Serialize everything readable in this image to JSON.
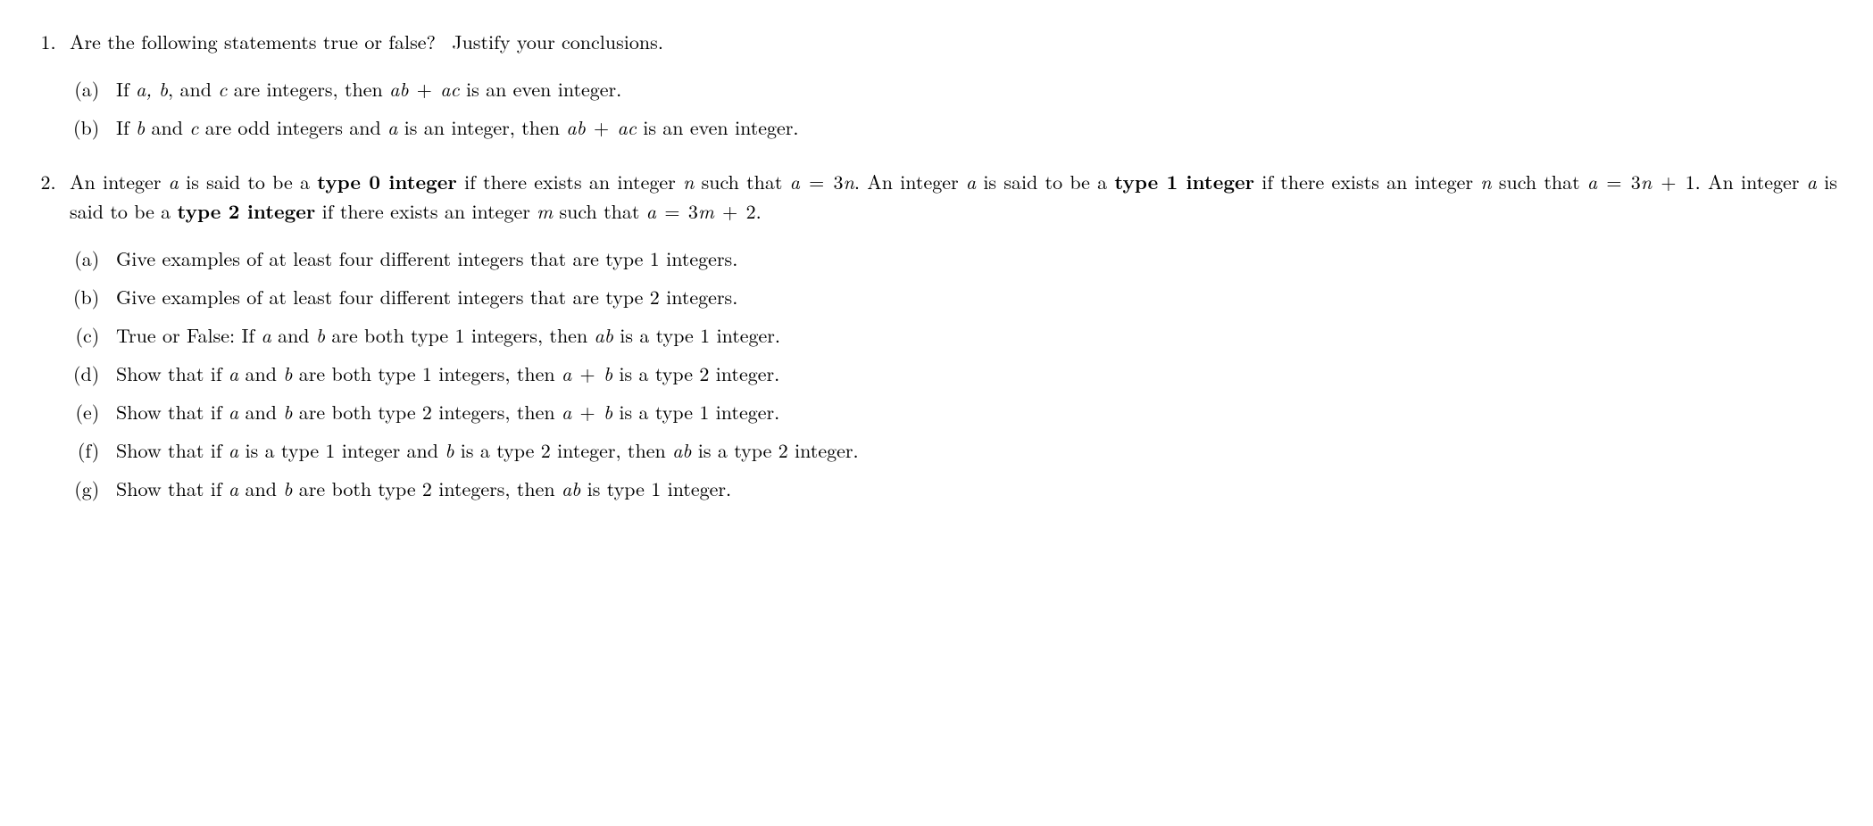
{
  "q1": {
    "prompt_pre": "Are the following statements true or false?",
    "prompt_post": "Justify your conclusions.",
    "a_pre": "If ",
    "a_vars": "a, b",
    "a_mid": ", and ",
    "a_c": "c",
    "a_post1": " are integers, then ",
    "a_expr1": "ab",
    "a_plus": " + ",
    "a_expr2": "ac",
    "a_end": " is an even integer.",
    "b_pre": "If ",
    "b_b": "b",
    "b_mid1": " and ",
    "b_c": "c",
    "b_mid2": " are odd integers and ",
    "b_a": "a",
    "b_mid3": " is an integer, then ",
    "b_expr1": "ab",
    "b_plus": " + ",
    "b_expr2": "ac",
    "b_end": " is an even integer."
  },
  "q2": {
    "intro_1": "An integer ",
    "intro_a": "a",
    "intro_2": " is said to be a ",
    "type0": "type 0 integer",
    "intro_3": " if there exists an integer ",
    "intro_n": "n",
    "intro_4": " such that ",
    "eq0_lhs": "a",
    "eq_eq": " = ",
    "eq0_rhs": "3n",
    "intro_5": ".  An integer ",
    "intro_6": " is said to be a ",
    "type1": "type 1 integer",
    "intro_7": " if there exists an integer ",
    "intro_8": " such that ",
    "eq1_lhs": "a",
    "eq1_rhs1": "3n",
    "eq1_plus": " + ",
    "eq1_rhs2": "1",
    "intro_9": ".  An integer ",
    "intro_10": " is said to be a ",
    "type2": "type 2 integer",
    "intro_11": " if there exists an integer ",
    "intro_m": "m",
    "intro_12": " such that ",
    "eq2_lhs": "a",
    "eq2_rhs1": "3m",
    "eq2_plus": " + ",
    "eq2_rhs2": "2",
    "intro_13": ".",
    "a": "Give examples of at least four different integers that are type 1 integers.",
    "b": "Give examples of at least four different integers that are type 2 integers.",
    "c_pre": "True or False: If ",
    "c_a": "a",
    "c_and": " and ",
    "c_b": "b",
    "c_mid": " are both type 1 integers, then ",
    "c_ab": "ab",
    "c_end": " is a type 1 integer.",
    "d_pre": "Show that if ",
    "d_mid": " are both type 1 integers, then ",
    "d_sum1": "a",
    "d_plus": " + ",
    "d_sum2": "b",
    "d_end": " is a type 2 integer.",
    "e_pre": "Show that if ",
    "e_mid": " are both type 2 integers, then ",
    "e_end": " is a type 1 integer.",
    "f_pre": "Show that if ",
    "f_mid1": " is a type 1 integer and ",
    "f_mid2": " is a type 2 integer, then ",
    "f_ab": "ab",
    "f_end": " is a type 2 integer.",
    "g_pre": "Show that if ",
    "g_mid": " are both type 2 integers, then ",
    "g_ab": "ab",
    "g_end": " is type 1 integer."
  }
}
